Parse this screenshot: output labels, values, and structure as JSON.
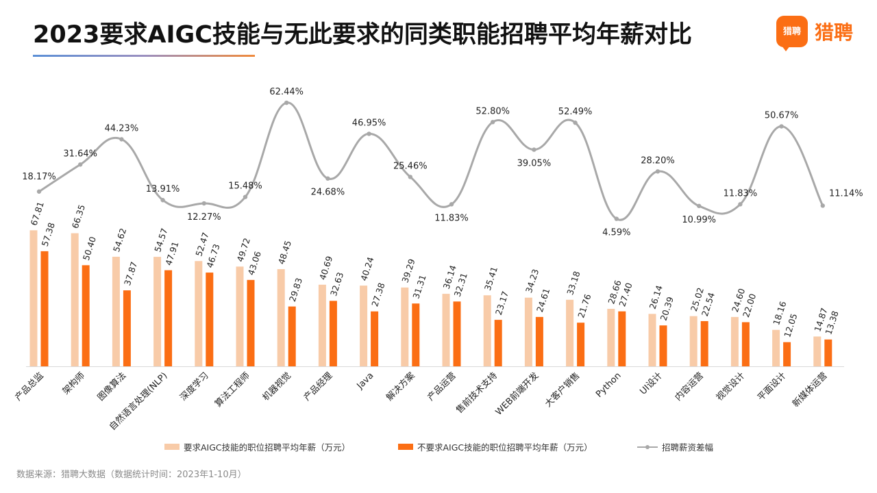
{
  "title": "2023要求AIGC技能与无此要求的同类职能招聘平均年薪对比",
  "logo": {
    "badge_text": "猎聘",
    "text": "猎聘"
  },
  "source_note": "数据来源：猎聘大数据（数据统计时间：2023年1-10月）",
  "colors": {
    "aigc": "#f8cba8",
    "non_aigc": "#fb6e14",
    "line": "#a8a8a8"
  },
  "chart_data": {
    "type": "bar+line",
    "categories": [
      "产品总监",
      "架构师",
      "图像算法",
      "自然语言处理(NLP)",
      "深度学习",
      "算法工程师",
      "机器视觉",
      "产品经理",
      "Java",
      "解决方案",
      "产品运营",
      "售前技术支持",
      "WEB前端开发",
      "大客户销售",
      "Python",
      "UI设计",
      "内容运营",
      "视觉设计",
      "平面设计",
      "新媒体运营"
    ],
    "series": [
      {
        "name": "要求AIGC技能的职位招聘平均年薪（万元）",
        "type": "bar",
        "values": [
          67.81,
          66.35,
          54.62,
          54.57,
          52.47,
          49.72,
          48.45,
          40.69,
          40.24,
          39.29,
          36.14,
          35.41,
          34.23,
          33.18,
          28.66,
          26.14,
          25.02,
          24.6,
          18.16,
          14.87
        ],
        "labels": [
          "67.81",
          "66.35",
          "54.62",
          "54.57",
          "52.47",
          "49.72",
          "48.45",
          "40.69",
          "40.24",
          "39.29",
          "36.14",
          "35.41",
          "34.23",
          "33.18",
          "28.66",
          "26.14",
          "25.02",
          "24.60",
          "18.16",
          "14.87"
        ]
      },
      {
        "name": "不要求AIGC技能的职位招聘平均年薪（万元）",
        "type": "bar",
        "values": [
          57.38,
          50.4,
          37.87,
          47.91,
          46.73,
          43.06,
          29.83,
          32.63,
          27.38,
          31.31,
          32.31,
          23.17,
          24.61,
          21.76,
          27.4,
          20.39,
          22.54,
          22.0,
          12.05,
          13.38
        ],
        "labels": [
          "57.38",
          "50.40",
          "37.87",
          "47.91",
          "46.73",
          "43.06",
          "29.83",
          "32.63",
          "27.38",
          "31.31",
          "32.31",
          "23.17",
          "24.61",
          "21.76",
          "27.40",
          "20.39",
          "22.54",
          "22.00",
          "12.05",
          "13.38"
        ]
      },
      {
        "name": "招聘薪资差幅",
        "type": "line",
        "unit": "%",
        "values": [
          18.17,
          31.64,
          44.23,
          13.91,
          12.27,
          15.48,
          62.44,
          24.68,
          46.95,
          25.46,
          11.83,
          52.8,
          39.05,
          52.49,
          4.59,
          28.2,
          10.99,
          11.83,
          50.67,
          11.14
        ],
        "labels": [
          "18.17%",
          "31.64%",
          "44.23%",
          "13.91%",
          "12.27%",
          "15.48%",
          "62.44%",
          "24.68%",
          "46.95%",
          "25.46%",
          "11.83%",
          "52.80%",
          "39.05%",
          "52.49%",
          "4.59%",
          "28.20%",
          "10.99%",
          "11.83%",
          "50.67%",
          "11.14%"
        ]
      }
    ],
    "bar_axis_range": [
      0,
      75
    ],
    "line_axis_range": [
      0,
      65
    ],
    "legend_position": "bottom",
    "grid": false
  }
}
